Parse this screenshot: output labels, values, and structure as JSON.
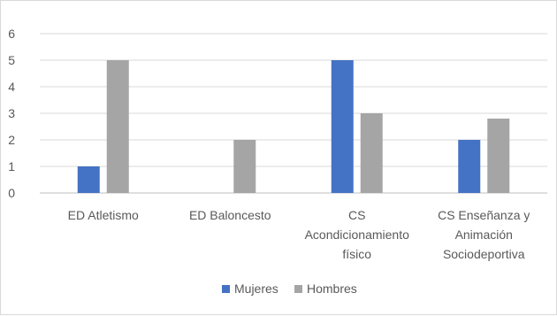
{
  "chart_data": {
    "type": "bar",
    "categories": [
      [
        "ED Atletismo"
      ],
      [
        "ED Baloncesto"
      ],
      [
        "CS",
        "Acondicionamiento",
        "físico"
      ],
      [
        "CS Enseñanza y",
        "Animación",
        "Sociodeportiva"
      ]
    ],
    "series": [
      {
        "name": "Mujeres",
        "color": "#4472C4",
        "values": [
          1,
          0,
          5,
          2
        ]
      },
      {
        "name": "Hombres",
        "color": "#A5A5A5",
        "values": [
          5,
          2,
          3,
          2.8
        ]
      }
    ],
    "ylim": [
      0,
      6
    ],
    "yticks": [
      "0",
      "1",
      "2",
      "3",
      "4",
      "5",
      "6"
    ],
    "grid": true,
    "legend_position": "bottom"
  }
}
